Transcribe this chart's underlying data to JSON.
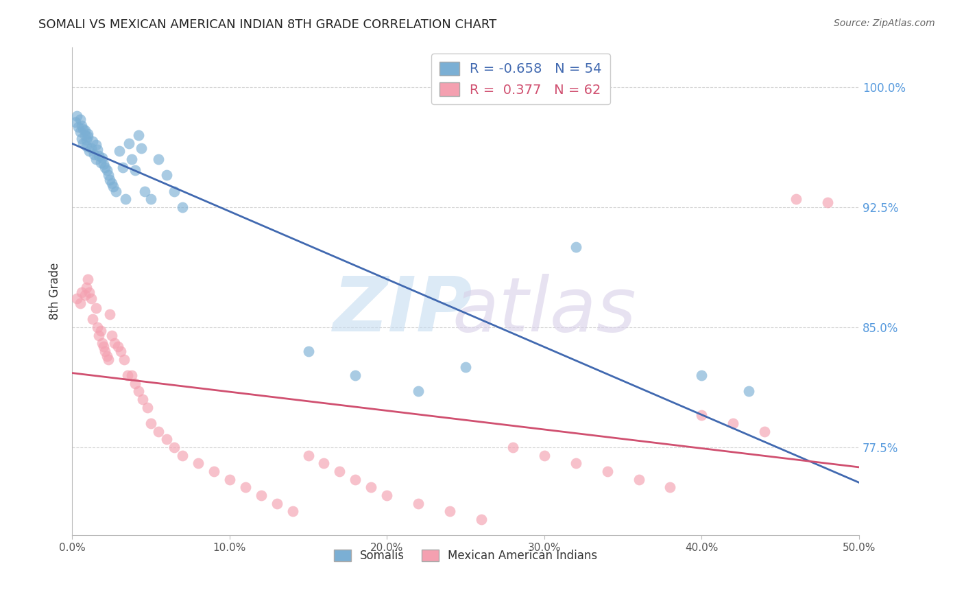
{
  "title": "SOMALI VS MEXICAN AMERICAN INDIAN 8TH GRADE CORRELATION CHART",
  "source": "Source: ZipAtlas.com",
  "ylabel": "8th Grade",
  "ytick_labels": [
    "77.5%",
    "85.0%",
    "92.5%",
    "100.0%"
  ],
  "ytick_values": [
    0.775,
    0.85,
    0.925,
    1.0
  ],
  "xlim": [
    0.0,
    0.5
  ],
  "ylim": [
    0.72,
    1.025
  ],
  "legend_blue_r": "-0.658",
  "legend_blue_n": "54",
  "legend_pink_r": "0.377",
  "legend_pink_n": "62",
  "blue_color": "#7BAFD4",
  "pink_color": "#F4A0B0",
  "line_blue_color": "#4169B0",
  "line_pink_color": "#D05070",
  "somali_x": [
    0.002,
    0.003,
    0.004,
    0.005,
    0.005,
    0.006,
    0.006,
    0.007,
    0.007,
    0.008,
    0.008,
    0.009,
    0.009,
    0.01,
    0.01,
    0.011,
    0.012,
    0.013,
    0.014,
    0.015,
    0.015,
    0.016,
    0.017,
    0.018,
    0.019,
    0.02,
    0.021,
    0.022,
    0.023,
    0.024,
    0.025,
    0.026,
    0.028,
    0.03,
    0.032,
    0.034,
    0.036,
    0.038,
    0.04,
    0.042,
    0.044,
    0.046,
    0.05,
    0.055,
    0.06,
    0.065,
    0.07,
    0.15,
    0.18,
    0.22,
    0.25,
    0.32,
    0.4,
    0.43
  ],
  "somali_y": [
    0.978,
    0.982,
    0.975,
    0.98,
    0.972,
    0.976,
    0.968,
    0.974,
    0.965,
    0.97,
    0.973,
    0.967,
    0.963,
    0.971,
    0.969,
    0.96,
    0.962,
    0.966,
    0.958,
    0.964,
    0.955,
    0.961,
    0.957,
    0.953,
    0.956,
    0.952,
    0.95,
    0.948,
    0.945,
    0.942,
    0.94,
    0.938,
    0.935,
    0.96,
    0.95,
    0.93,
    0.965,
    0.955,
    0.948,
    0.97,
    0.962,
    0.935,
    0.93,
    0.955,
    0.945,
    0.935,
    0.925,
    0.835,
    0.82,
    0.81,
    0.825,
    0.9,
    0.82,
    0.81
  ],
  "mexican_x": [
    0.003,
    0.005,
    0.006,
    0.008,
    0.009,
    0.01,
    0.011,
    0.012,
    0.013,
    0.015,
    0.016,
    0.017,
    0.018,
    0.019,
    0.02,
    0.021,
    0.022,
    0.023,
    0.024,
    0.025,
    0.027,
    0.029,
    0.031,
    0.033,
    0.035,
    0.038,
    0.04,
    0.042,
    0.045,
    0.048,
    0.05,
    0.055,
    0.06,
    0.065,
    0.07,
    0.08,
    0.09,
    0.1,
    0.11,
    0.12,
    0.13,
    0.14,
    0.15,
    0.16,
    0.17,
    0.18,
    0.19,
    0.2,
    0.22,
    0.24,
    0.26,
    0.28,
    0.3,
    0.32,
    0.34,
    0.36,
    0.38,
    0.4,
    0.42,
    0.44,
    0.46,
    0.48
  ],
  "mexican_y": [
    0.868,
    0.865,
    0.872,
    0.87,
    0.875,
    0.88,
    0.872,
    0.868,
    0.855,
    0.862,
    0.85,
    0.845,
    0.848,
    0.84,
    0.838,
    0.835,
    0.832,
    0.83,
    0.858,
    0.845,
    0.84,
    0.838,
    0.835,
    0.83,
    0.82,
    0.82,
    0.815,
    0.81,
    0.805,
    0.8,
    0.79,
    0.785,
    0.78,
    0.775,
    0.77,
    0.765,
    0.76,
    0.755,
    0.75,
    0.745,
    0.74,
    0.735,
    0.77,
    0.765,
    0.76,
    0.755,
    0.75,
    0.745,
    0.74,
    0.735,
    0.73,
    0.775,
    0.77,
    0.765,
    0.76,
    0.755,
    0.75,
    0.795,
    0.79,
    0.785,
    0.93,
    0.928
  ]
}
